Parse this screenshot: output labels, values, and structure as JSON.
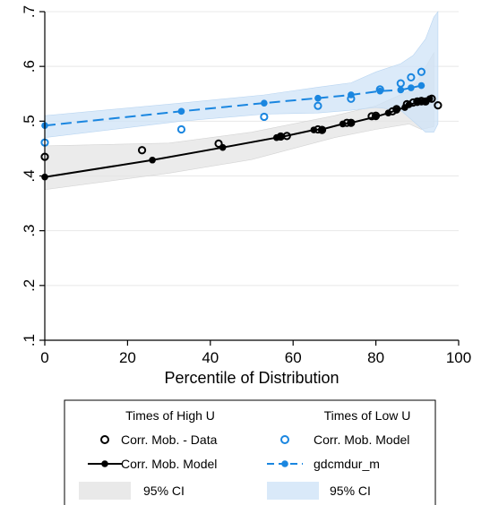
{
  "chart_data": {
    "type": "scatter",
    "xlabel": "Percentile of Distribution",
    "ylabel": "",
    "xlim": [
      0,
      100
    ],
    "ylim": [
      0.1,
      0.7
    ],
    "x_ticks": [
      "0",
      "20",
      "40",
      "60",
      "80",
      "100"
    ],
    "y_ticks": [
      ".1",
      ".2",
      ".3",
      ".4",
      ".5",
      ".6",
      ".7"
    ],
    "grid": "horizontal",
    "legend_position": "bottom",
    "legend": {
      "left_header": "Times of High U",
      "right_header": "Times of Low U",
      "items": [
        "Corr. Mob. - Data",
        "Corr. Mob. Model",
        "Corr. Mob. Model",
        "gdcmdur_m",
        "95% CI",
        "95% CI"
      ]
    },
    "colors": {
      "high": "#000000",
      "low": "#1a86e0",
      "ci_high": "#e4e4e4",
      "ci_low": "#cfe3f7"
    },
    "series": [
      {
        "name": "Corr. Mob. - Data",
        "group": "Times of High U",
        "kind": "hollow-markers",
        "x": [
          0,
          23.5,
          42,
          57,
          58.5,
          66,
          67,
          73,
          74,
          79,
          80,
          84,
          85,
          87.5,
          89,
          90,
          91,
          92,
          93.5,
          95
        ],
        "y": [
          0.435,
          0.447,
          0.459,
          0.472,
          0.473,
          0.485,
          0.484,
          0.497,
          0.497,
          0.509,
          0.51,
          0.518,
          0.522,
          0.531,
          0.534,
          0.536,
          0.537,
          0.536,
          0.541,
          0.529
        ]
      },
      {
        "name": "Corr. Mob. Model",
        "group": "Times of High U",
        "kind": "solid-line-markers",
        "x": [
          0,
          26,
          43,
          56,
          57,
          65,
          67,
          72,
          74,
          80,
          83,
          85,
          87,
          88,
          90,
          91,
          92,
          93
        ],
        "y": [
          0.398,
          0.429,
          0.452,
          0.47,
          0.471,
          0.484,
          0.485,
          0.495,
          0.497,
          0.508,
          0.515,
          0.52,
          0.525,
          0.53,
          0.534,
          0.535,
          0.536,
          0.541
        ]
      },
      {
        "name": "Corr. Mob. Model",
        "group": "Times of Low U",
        "kind": "hollow-markers",
        "x": [
          0,
          33,
          53,
          66,
          74,
          81,
          86,
          88.5,
          91
        ],
        "y": [
          0.461,
          0.485,
          0.508,
          0.528,
          0.541,
          0.558,
          0.569,
          0.58,
          0.59
        ]
      },
      {
        "name": "gdcmdur_m",
        "group": "Times of Low U",
        "kind": "dashed-line-markers",
        "x": [
          0,
          33,
          53,
          66,
          74,
          81,
          86,
          88.5,
          91
        ],
        "y": [
          0.492,
          0.518,
          0.533,
          0.542,
          0.548,
          0.555,
          0.557,
          0.561,
          0.565
        ]
      }
    ],
    "ci_bands": [
      {
        "name": "95% CI",
        "group": "Times of High U",
        "x": [
          0,
          30,
          50,
          70,
          80,
          88,
          91,
          94
        ],
        "lower": [
          0.375,
          0.405,
          0.43,
          0.47,
          0.485,
          0.495,
          0.485,
          0.49
        ],
        "upper": [
          0.455,
          0.46,
          0.48,
          0.51,
          0.528,
          0.555,
          0.585,
          0.625
        ]
      },
      {
        "name": "95% CI",
        "group": "Times of Low U",
        "x": [
          0,
          33,
          53,
          66,
          74,
          80,
          86,
          89,
          92,
          94,
          95
        ],
        "lower": [
          0.47,
          0.5,
          0.513,
          0.515,
          0.52,
          0.525,
          0.52,
          0.5,
          0.48,
          0.48,
          0.495
        ],
        "upper": [
          0.51,
          0.533,
          0.548,
          0.562,
          0.57,
          0.59,
          0.605,
          0.62,
          0.65,
          0.69,
          0.7
        ]
      }
    ]
  }
}
